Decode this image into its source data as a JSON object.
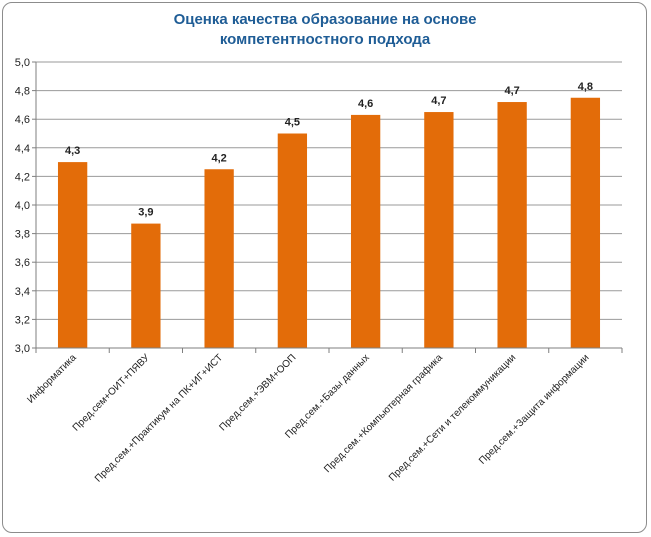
{
  "chart_data": {
    "type": "bar",
    "title_lines": [
      "Оценка качества образование на основе",
      "компетентностного подхода"
    ],
    "categories": [
      "Информатика",
      "Пред.сем+ОИТ+ПЯВУ",
      "Пред.сем.+Практикум на ПК+ИГ+ИСТ",
      "Пред.сем.+ЭВМ+ООП",
      "Пред.сем.+Базы данных",
      "Пред.сем.+Компьютерная графика",
      "Пред.сем.+Сети и телекоммуникации",
      "Пред.сем.+Защита информации"
    ],
    "values": [
      4.3,
      3.87,
      4.25,
      4.5,
      4.63,
      4.65,
      4.72,
      4.75
    ],
    "labels": [
      "4,3",
      "3,9",
      "4,2",
      "4,5",
      "4,6",
      "4,7",
      "4,7",
      "4,8"
    ],
    "ylim": [
      3.0,
      5.0
    ],
    "yticks": [
      "3,0",
      "3,2",
      "3,4",
      "3,6",
      "3,8",
      "4,0",
      "4,2",
      "4,4",
      "4,6",
      "4,8",
      "5,0"
    ],
    "ytick_values": [
      3.0,
      3.2,
      3.4,
      3.6,
      3.8,
      4.0,
      4.2,
      4.4,
      4.6,
      4.8,
      5.0
    ],
    "grid": true,
    "legend": "none",
    "bar_color": "#e36c09",
    "title_color": "#1f5d96"
  }
}
